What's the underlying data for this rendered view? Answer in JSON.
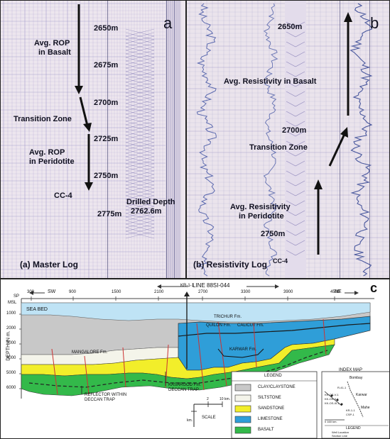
{
  "panel_a": {
    "letter": "a",
    "caption": "(a) Master Log",
    "depths": [
      "2650m",
      "2675m",
      "2700m",
      "2725m",
      "2750m",
      "2775m"
    ],
    "rop_basalt": [
      "Avg. ROP",
      "in Basalt"
    ],
    "transition": "Transition Zone",
    "rop_peridotite": [
      "Avg. ROP",
      "in Peridotite"
    ],
    "well": "CC-4",
    "drilled": [
      "Drilled Depth",
      "2762.6m"
    ]
  },
  "panel_b": {
    "letter": "b",
    "caption": "(b) Resistivity Log",
    "depths": [
      "2650m",
      "2700m",
      "2750m"
    ],
    "res_basalt": "Avg. Resistivity in Basalt",
    "transition": "Transition Zone",
    "res_peridotite": [
      "Avg. Resisitivity",
      "in Peridotite"
    ],
    "well": "CC-4"
  },
  "panel_c": {
    "letter": "c",
    "line_title": "LINE 88SI-044",
    "sw": "SW",
    "ne": "NE",
    "well": "KR-1-1",
    "sp": "SP",
    "msl": "MSL",
    "x_ticks": [
      "300",
      "900",
      "1500",
      "2100",
      "2700",
      "3300",
      "3900",
      "4500"
    ],
    "y_ticks": [
      "1000",
      "2000",
      "3000",
      "4000",
      "5000",
      "6000"
    ],
    "y_label": "DEPTH IN m.",
    "sea_bed": "SEA BED",
    "formations": [
      "TRICHUR Fm.",
      "QUILON Fm.",
      "CALICUT Fm.",
      "MANGALORE Fm.",
      "KARWAR Fm."
    ],
    "ann_kasargod": [
      "KASARGOD Fm.",
      "DECCAN TRAP"
    ],
    "ann_reflector": [
      "REFLECTOR WITHIN",
      "DECCAN TRAP"
    ],
    "legend_title": "LEGEND",
    "legend": [
      {
        "label": "CLAY/CLAYSTONE",
        "color": "#c8c8c8"
      },
      {
        "label": "SILTSTONE",
        "color": "#f4f4ea"
      },
      {
        "label": "SANDSTONE",
        "color": "#f2ee2a"
      },
      {
        "label": "LIMESTONE",
        "color": "#2f9ed8"
      },
      {
        "label": "BASALT",
        "color": "#33b94a"
      }
    ],
    "scale_label": "SCALE",
    "scale_vals": [
      "2",
      "10 km.",
      "km."
    ],
    "index_title": "INDEX MAP",
    "index_places": [
      "Bombay",
      "Karwar",
      "Mahe",
      "R-41-1",
      "KK-OS-II-1",
      "KK-OS-III-1",
      "KK-OS-V-1",
      "KR-1-1",
      "CSP-1"
    ],
    "index_scale": "0 160 km.",
    "index_legend": "LEGEND",
    "index_items": [
      "Well Location",
      "Section Line"
    ]
  }
}
